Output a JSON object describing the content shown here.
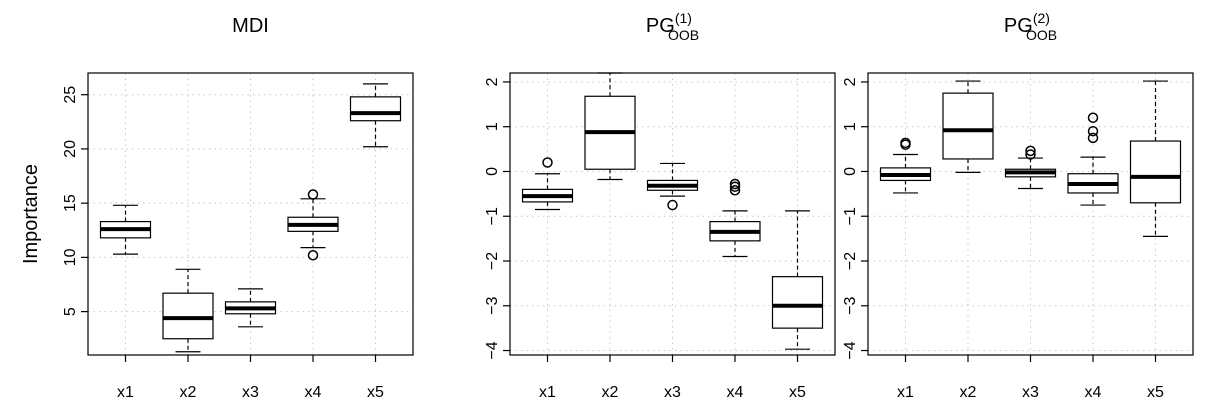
{
  "chart_data": [
    {
      "type": "boxplot",
      "title": "MDI",
      "title_sup": "",
      "title_sub": "",
      "ylabel": "Importance",
      "categories": [
        "x1",
        "x2",
        "x3",
        "x4",
        "x5"
      ],
      "ylim": [
        1,
        27
      ],
      "yticks": [
        5,
        10,
        15,
        20,
        25
      ],
      "grid": true,
      "boxes": [
        {
          "whisker_low": 10.3,
          "q1": 11.8,
          "median": 12.6,
          "q3": 13.3,
          "whisker_high": 14.8,
          "outliers": []
        },
        {
          "whisker_low": 1.3,
          "q1": 2.5,
          "median": 4.4,
          "q3": 6.7,
          "whisker_high": 8.9,
          "outliers": []
        },
        {
          "whisker_low": 3.6,
          "q1": 4.8,
          "median": 5.3,
          "q3": 5.9,
          "whisker_high": 7.1,
          "outliers": []
        },
        {
          "whisker_low": 10.9,
          "q1": 12.4,
          "median": 13.0,
          "q3": 13.7,
          "whisker_high": 15.4,
          "outliers": [
            15.8,
            10.2
          ]
        },
        {
          "whisker_low": 20.2,
          "q1": 22.6,
          "median": 23.3,
          "q3": 24.8,
          "whisker_high": 26.0,
          "outliers": []
        }
      ]
    },
    {
      "type": "boxplot",
      "title": "PG",
      "title_sup": "(1)",
      "title_sub": "OOB",
      "ylabel": "",
      "categories": [
        "x1",
        "x2",
        "x3",
        "x4",
        "x5"
      ],
      "ylim": [
        -4.1,
        2.2
      ],
      "yticks": [
        -4,
        -3,
        -2,
        -1,
        0,
        1,
        2
      ],
      "grid": true,
      "boxes": [
        {
          "whisker_low": -0.85,
          "q1": -0.68,
          "median": -0.55,
          "q3": -0.4,
          "whisker_high": -0.05,
          "outliers": [
            0.2
          ]
        },
        {
          "whisker_low": -0.18,
          "q1": 0.05,
          "median": 0.88,
          "q3": 1.68,
          "whisker_high": 2.2,
          "outliers": []
        },
        {
          "whisker_low": -0.55,
          "q1": -0.42,
          "median": -0.32,
          "q3": -0.2,
          "whisker_high": 0.18,
          "outliers": [
            -0.75
          ]
        },
        {
          "whisker_low": -1.9,
          "q1": -1.55,
          "median": -1.35,
          "q3": -1.12,
          "whisker_high": -0.88,
          "outliers": [
            -0.28,
            -0.34,
            -0.42
          ]
        },
        {
          "whisker_low": -3.97,
          "q1": -3.5,
          "median": -3.0,
          "q3": -2.35,
          "whisker_high": -0.88,
          "outliers": []
        }
      ]
    },
    {
      "type": "boxplot",
      "title": "PG",
      "title_sup": "(2)",
      "title_sub": "OOB",
      "ylabel": "",
      "categories": [
        "x1",
        "x2",
        "x3",
        "x4",
        "x5"
      ],
      "ylim": [
        -4.1,
        2.2
      ],
      "yticks": [
        -4,
        -3,
        -2,
        -1,
        0,
        1,
        2
      ],
      "grid": true,
      "boxes": [
        {
          "whisker_low": -0.48,
          "q1": -0.2,
          "median": -0.08,
          "q3": 0.08,
          "whisker_high": 0.38,
          "outliers": [
            0.6,
            0.64
          ]
        },
        {
          "whisker_low": -0.02,
          "q1": 0.28,
          "median": 0.92,
          "q3": 1.75,
          "whisker_high": 2.02,
          "outliers": []
        },
        {
          "whisker_low": -0.38,
          "q1": -0.12,
          "median": -0.02,
          "q3": 0.05,
          "whisker_high": 0.3,
          "outliers": [
            0.38,
            0.46
          ]
        },
        {
          "whisker_low": -0.75,
          "q1": -0.48,
          "median": -0.28,
          "q3": -0.05,
          "whisker_high": 0.32,
          "outliers": [
            0.75,
            0.9,
            1.2
          ]
        },
        {
          "whisker_low": -1.45,
          "q1": -0.7,
          "median": -0.12,
          "q3": 0.68,
          "whisker_high": 2.02,
          "outliers": []
        }
      ]
    }
  ]
}
